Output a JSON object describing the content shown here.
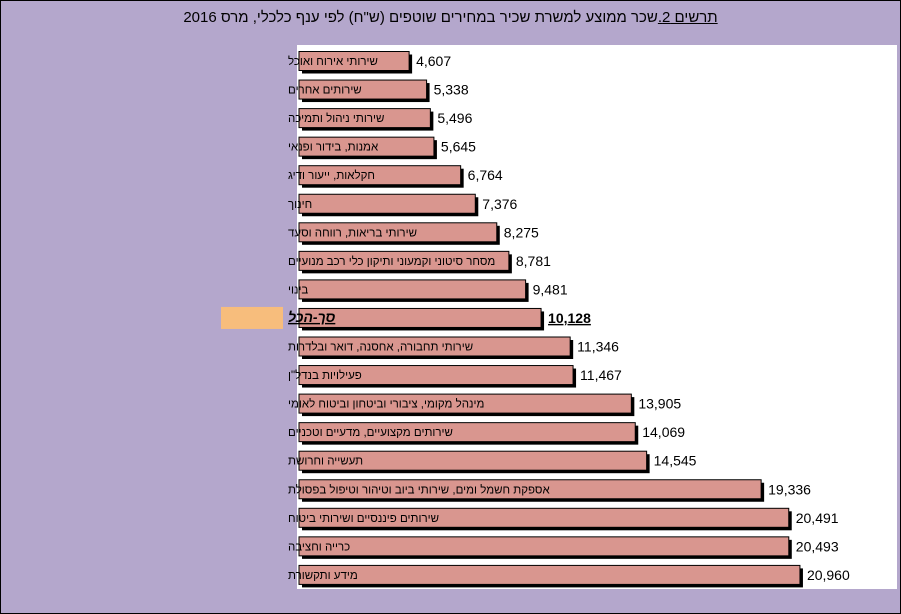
{
  "title": {
    "prefix": "תרשים 2.",
    "text": "שכר ממוצע למשרת שכיר במחירים שוטפים (ש\"ח) לפי ענף כלכלי,  מרס  2016"
  },
  "colors": {
    "frame_bg": "#b4a7cc",
    "bar_fill": "#d9968f",
    "bar_shadow": "#000000",
    "highlight_label_bg": "#f7bd7c",
    "plot_bg": "#ffffff"
  },
  "chart_data": {
    "type": "bar",
    "orientation": "horizontal",
    "categories": [
      "שירותי אירוח ואוכל",
      "שירותים אחרים",
      "שירותי ניהול ותמיכה",
      "אמנות, בידור ופנאי",
      "חקלאות, ייעור ודיג",
      "חינוך",
      "שירותי בריאות, רווחה וסעד",
      "מסחר סיטוני וקמעוני ותיקון כלי רכב מנועיים",
      "בינוי",
      "סך-הכל",
      "שירותי תחבורה, אחסנה, דואר ובלדרות",
      "פעילויות בנדל\"ן",
      "מינהל מקומי, ציבורי וביטחון וביטוח לאומי",
      "שירותים מקצועיים, מדעיים וטכניים",
      "תעשייה וחרושת",
      "אספקת חשמל ומים, שירותי ביוב וטיהור וטיפול בפסולת",
      "שירותים פיננסיים ושירותי ביטוח",
      "כרייה וחציבה",
      "מידע ותקשורת"
    ],
    "value_labels": [
      "4,607",
      "5,338",
      "5,496",
      "5,645",
      "6,764",
      "7,376",
      "8,275",
      "8,781",
      "9,481",
      "10,128",
      "11,346",
      "11,467",
      "13,905",
      "14,069",
      "14,545",
      "19,336",
      "20,491",
      "20,493",
      "20,960"
    ],
    "values": [
      4607,
      5338,
      5496,
      5645,
      6764,
      7376,
      8275,
      8781,
      9481,
      10128,
      11346,
      11467,
      13905,
      14069,
      14545,
      19336,
      20491,
      20493,
      20960
    ],
    "highlight_index": 9,
    "xlim": [
      0,
      25000
    ],
    "grid": false,
    "legend": "none"
  }
}
